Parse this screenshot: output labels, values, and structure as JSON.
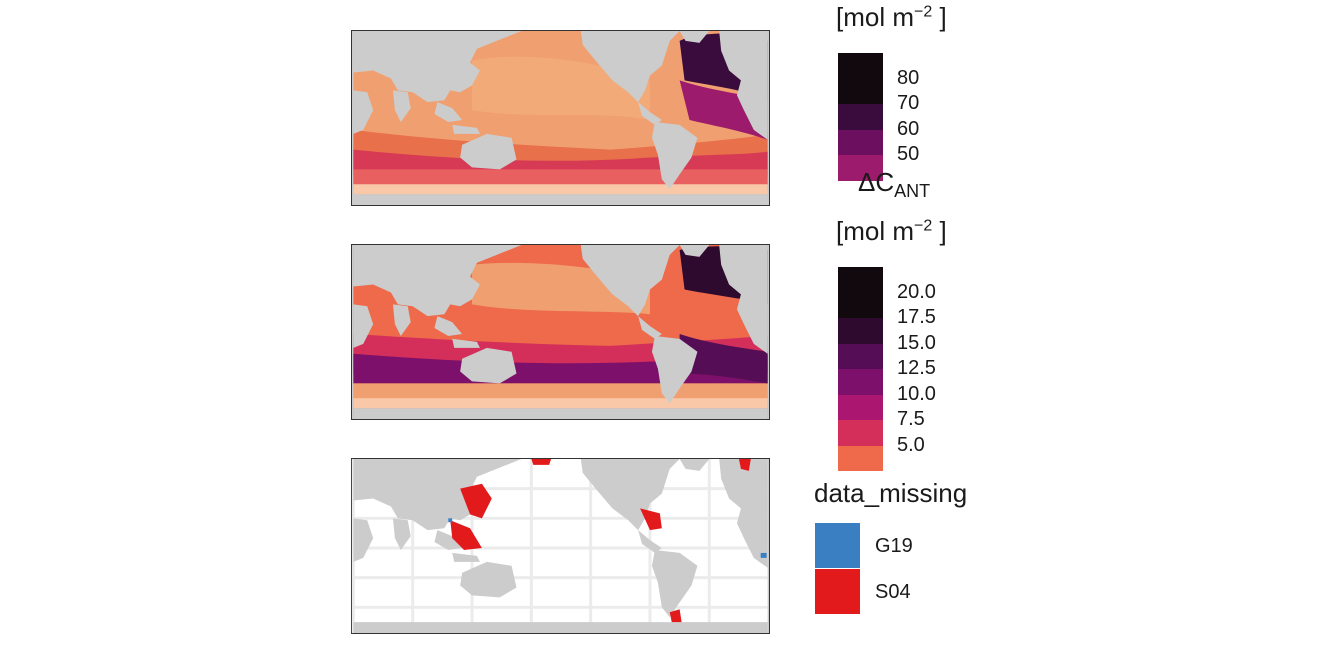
{
  "chart_data": [
    {
      "type": "heatmap",
      "panel": "top",
      "legend": {
        "unit_label": "[mol m",
        "unit_exp": "−2",
        "unit_close": " ]",
        "ticks": [
          "80",
          "70",
          "60",
          "50"
        ],
        "colors": [
          "#12090e",
          "#3a0b3d",
          "#6b0f5e",
          "#9c1b6c"
        ]
      }
    },
    {
      "type": "heatmap",
      "panel": "middle",
      "legend": {
        "title_main": "ΔC",
        "title_sub": "ANT",
        "unit_label": "[mol m",
        "unit_exp": "−2",
        "unit_close": " ]",
        "ticks": [
          "20.0",
          "17.5",
          "15.0",
          "12.5",
          "10.0",
          "7.5",
          "5.0"
        ],
        "colors": [
          "#12090e",
          "#2e0a2e",
          "#550e55",
          "#7d106a",
          "#ab1670",
          "#d32f5a",
          "#ee6a4a"
        ]
      }
    },
    {
      "type": "heatmap",
      "panel": "bottom",
      "legend": {
        "title": "data_missing",
        "entries": [
          {
            "label": "G19",
            "color": "#3a7fc1"
          },
          {
            "label": "S04",
            "color": "#e31a1c"
          }
        ]
      }
    }
  ]
}
